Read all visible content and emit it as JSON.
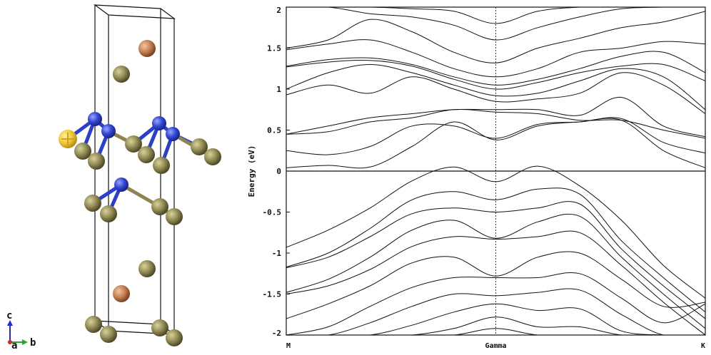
{
  "structure_view": {
    "axes": {
      "c": "c",
      "a": "a",
      "b": "b"
    },
    "colors": {
      "bond": "#2a3fcf",
      "metal": "#3348d6",
      "chalcogen": "#8c8550",
      "alkali": "#c07a4c",
      "selected": "#f2c531",
      "cell": "#111111"
    }
  },
  "chart_data": {
    "type": "line",
    "title": "",
    "xlabel": "",
    "ylabel": "Energy (eV)",
    "ylim": [
      -2,
      2
    ],
    "y_ticks": [
      "2",
      "1.5",
      "1",
      "0.5",
      "0",
      "-0.5",
      "-1",
      "-1.5",
      "-2"
    ],
    "x_ticks": [
      {
        "label": "M",
        "x": 0
      },
      {
        "label": "Gamma",
        "x": 0.5
      },
      {
        "label": "K",
        "x": 1
      }
    ],
    "xlim": [
      0,
      1
    ],
    "fermi_level": 0,
    "series": [
      {
        "x": [
          0,
          0.1,
          0.2,
          0.3,
          0.4,
          0.5,
          0.6,
          0.7,
          0.8,
          0.9,
          1
        ],
        "values": [
          -0.93,
          -0.72,
          -0.45,
          -0.12,
          0.05,
          -0.13,
          0.06,
          -0.18,
          -0.6,
          -1.15,
          -1.55
        ]
      },
      {
        "x": [
          0,
          0.1,
          0.2,
          0.3,
          0.4,
          0.5,
          0.6,
          0.7,
          0.8,
          0.9,
          1
        ],
        "values": [
          -1.17,
          -1.0,
          -0.7,
          -0.35,
          -0.25,
          -0.35,
          -0.22,
          -0.28,
          -0.85,
          -1.3,
          -1.72
        ]
      },
      {
        "x": [
          0,
          0.1,
          0.2,
          0.3,
          0.4,
          0.5,
          0.6,
          0.7,
          0.8,
          0.9,
          1
        ],
        "values": [
          -1.18,
          -1.05,
          -0.8,
          -0.52,
          -0.45,
          -0.5,
          -0.45,
          -0.4,
          -0.95,
          -1.4,
          -1.8
        ]
      },
      {
        "x": [
          0,
          0.1,
          0.2,
          0.3,
          0.4,
          0.5,
          0.6,
          0.7,
          0.8,
          0.9,
          1
        ],
        "values": [
          -1.48,
          -1.32,
          -1.05,
          -0.72,
          -0.6,
          -0.82,
          -0.62,
          -0.55,
          -1.05,
          -1.5,
          -1.92
        ]
      },
      {
        "x": [
          0,
          0.1,
          0.2,
          0.3,
          0.4,
          0.5,
          0.6,
          0.7,
          0.8,
          0.9,
          1
        ],
        "values": [
          -1.5,
          -1.4,
          -1.2,
          -0.92,
          -0.8,
          -0.83,
          -0.8,
          -0.75,
          -1.15,
          -1.6,
          -2.0
        ]
      },
      {
        "x": [
          0,
          0.1,
          0.2,
          0.3,
          0.4,
          0.5,
          0.6,
          0.7,
          0.8,
          0.9,
          1
        ],
        "values": [
          -1.8,
          -1.62,
          -1.4,
          -1.12,
          -1.05,
          -1.28,
          -1.05,
          -1.0,
          -1.32,
          -1.65,
          -1.6
        ]
      },
      {
        "x": [
          0,
          0.1,
          0.2,
          0.3,
          0.4,
          0.5,
          0.6,
          0.7,
          0.8,
          0.9,
          1
        ],
        "values": [
          -2.0,
          -1.9,
          -1.65,
          -1.42,
          -1.3,
          -1.3,
          -1.3,
          -1.25,
          -1.55,
          -1.85,
          -1.62
        ]
      },
      {
        "x": [
          0,
          0.1,
          0.2,
          0.3,
          0.4,
          0.5,
          0.6,
          0.7,
          0.8,
          0.9,
          1
        ],
        "values": [
          -2.0,
          -2.0,
          -1.85,
          -1.65,
          -1.5,
          -1.52,
          -1.48,
          -1.45,
          -1.75,
          -2.0,
          -2.0
        ]
      },
      {
        "x": [
          0,
          0.1,
          0.2,
          0.3,
          0.4,
          0.5,
          0.6,
          0.7,
          0.8,
          0.9,
          1
        ],
        "values": [
          -2.0,
          -2.0,
          -2.0,
          -1.88,
          -1.72,
          -1.62,
          -1.7,
          -1.68,
          -1.95,
          -2.0,
          -2.0
        ]
      },
      {
        "x": [
          0,
          0.1,
          0.2,
          0.3,
          0.4,
          0.5,
          0.6,
          0.7,
          0.8,
          0.9,
          1
        ],
        "values": [
          -2.0,
          -2.0,
          -2.0,
          -2.0,
          -1.92,
          -1.78,
          -1.9,
          -1.9,
          -2.0,
          -2.0,
          -2.0
        ]
      },
      {
        "x": [
          0,
          0.1,
          0.2,
          0.3,
          0.4,
          0.5,
          0.6,
          0.7,
          0.8,
          0.9,
          1
        ],
        "values": [
          -2.0,
          -2.0,
          -2.0,
          -2.0,
          -2.0,
          -1.92,
          -2.0,
          -2.0,
          -2.0,
          -2.0,
          -2.0
        ]
      },
      {
        "x": [
          0,
          0.1,
          0.2,
          0.3,
          0.4,
          0.5,
          0.6,
          0.7,
          0.8,
          0.9,
          1
        ],
        "values": [
          0.04,
          0.07,
          0.05,
          0.3,
          0.6,
          0.38,
          0.55,
          0.6,
          0.62,
          0.25,
          0.04
        ]
      },
      {
        "x": [
          0,
          0.1,
          0.2,
          0.3,
          0.4,
          0.5,
          0.6,
          0.7,
          0.8,
          0.9,
          1
        ],
        "values": [
          0.25,
          0.2,
          0.3,
          0.55,
          0.55,
          0.4,
          0.57,
          0.6,
          0.64,
          0.35,
          0.22
        ]
      },
      {
        "x": [
          0,
          0.1,
          0.2,
          0.3,
          0.4,
          0.5,
          0.6,
          0.7,
          0.8,
          0.9,
          1
        ],
        "values": [
          0.45,
          0.48,
          0.6,
          0.65,
          0.75,
          0.72,
          0.7,
          0.62,
          0.62,
          0.5,
          0.4
        ]
      },
      {
        "x": [
          0,
          0.1,
          0.2,
          0.3,
          0.4,
          0.5,
          0.6,
          0.7,
          0.8,
          0.9,
          1
        ],
        "values": [
          0.45,
          0.55,
          0.65,
          0.7,
          0.75,
          0.75,
          0.75,
          0.68,
          0.9,
          0.55,
          0.42
        ]
      },
      {
        "x": [
          0,
          0.1,
          0.2,
          0.3,
          0.4,
          0.5,
          0.6,
          0.7,
          0.8,
          0.9,
          1
        ],
        "values": [
          0.93,
          1.05,
          0.95,
          1.15,
          1.0,
          0.85,
          0.88,
          0.95,
          1.2,
          1.05,
          0.7
        ]
      },
      {
        "x": [
          0,
          0.1,
          0.2,
          0.3,
          0.4,
          0.5,
          0.6,
          0.7,
          0.8,
          0.9,
          1
        ],
        "values": [
          1.0,
          1.2,
          1.3,
          1.2,
          1.05,
          0.92,
          0.95,
          1.1,
          1.25,
          1.15,
          0.75
        ]
      },
      {
        "x": [
          0,
          0.1,
          0.2,
          0.3,
          0.4,
          0.5,
          0.6,
          0.7,
          0.8,
          0.9,
          1
        ],
        "values": [
          1.27,
          1.33,
          1.35,
          1.28,
          1.12,
          1.0,
          1.08,
          1.2,
          1.28,
          1.3,
          1.1
        ]
      },
      {
        "x": [
          0,
          0.1,
          0.2,
          0.3,
          0.4,
          0.5,
          0.6,
          0.7,
          0.8,
          0.9,
          1
        ],
        "values": [
          1.28,
          1.36,
          1.38,
          1.3,
          1.15,
          1.05,
          1.12,
          1.25,
          1.4,
          1.45,
          1.2
        ]
      },
      {
        "x": [
          0,
          0.1,
          0.2,
          0.3,
          0.4,
          0.5,
          0.6,
          0.7,
          0.8,
          0.9,
          1
        ],
        "values": [
          1.48,
          1.55,
          1.6,
          1.45,
          1.25,
          1.15,
          1.25,
          1.45,
          1.5,
          1.58,
          1.55
        ]
      },
      {
        "x": [
          0,
          0.1,
          0.2,
          0.3,
          0.4,
          0.5,
          0.6,
          0.7,
          0.8,
          0.9,
          1
        ],
        "values": [
          1.5,
          1.6,
          1.85,
          1.7,
          1.45,
          1.32,
          1.5,
          1.62,
          1.75,
          1.82,
          1.95
        ]
      },
      {
        "x": [
          0,
          0.1,
          0.2,
          0.3,
          0.4,
          0.5,
          0.6,
          0.7,
          0.8,
          0.9,
          1
        ],
        "values": [
          2.0,
          2.0,
          1.92,
          1.88,
          1.78,
          1.6,
          1.75,
          1.88,
          1.98,
          2.0,
          2.0
        ]
      },
      {
        "x": [
          0,
          0.1,
          0.2,
          0.3,
          0.4,
          0.5,
          0.6,
          0.7,
          0.8,
          0.9,
          1
        ],
        "values": [
          2.0,
          2.0,
          2.0,
          1.98,
          1.95,
          1.8,
          1.95,
          2.0,
          2.0,
          2.0,
          2.0
        ]
      }
    ]
  }
}
